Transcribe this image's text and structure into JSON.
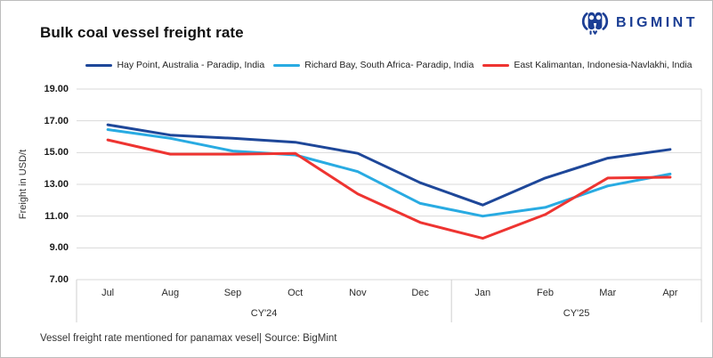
{
  "title": "Bulk coal vessel freight rate",
  "logo": {
    "text": "BIGMINT",
    "color": "#1b3e94"
  },
  "footer": "Vessel freight rate mentioned for panamax vesel| Source: BigMint",
  "chart_data": {
    "type": "line",
    "title": "Bulk coal vessel freight rate",
    "ylabel": "Freight in USD/t",
    "ylim": [
      7,
      19
    ],
    "y_ticks": [
      "19.00",
      "17.00",
      "15.00",
      "13.00",
      "11.00",
      "9.00",
      "7.00"
    ],
    "categories": [
      "Jul",
      "Aug",
      "Sep",
      "Oct",
      "Nov",
      "Dec",
      "Jan",
      "Feb",
      "Mar",
      "Apr"
    ],
    "category_groups": [
      {
        "label": "CY'24",
        "months": 6
      },
      {
        "label": "CY'25",
        "months": 4
      }
    ],
    "grid": true,
    "legend_position": "top",
    "grid_color": "#d9d9d9",
    "axis_box_color": "#cfcfcf",
    "series": [
      {
        "name": "Hay Point, Australia - Paradip, India",
        "color": "#1e4799",
        "values": [
          16.75,
          16.1,
          15.9,
          15.65,
          14.95,
          13.1,
          11.7,
          13.4,
          14.65,
          15.2
        ]
      },
      {
        "name": "Richard Bay, South Africa- Paradip, India",
        "color": "#29abe2",
        "values": [
          16.45,
          15.9,
          15.1,
          14.85,
          13.8,
          11.8,
          11.0,
          11.55,
          12.9,
          13.65
        ]
      },
      {
        "name": "East Kalimantan, Indonesia-Navlakhi, India",
        "color": "#ee3431",
        "values": [
          15.8,
          14.9,
          14.9,
          14.95,
          12.4,
          10.6,
          9.6,
          11.1,
          13.4,
          13.45
        ]
      }
    ]
  }
}
